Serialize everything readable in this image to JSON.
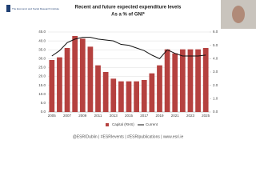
{
  "logo": "The Economic and Social Research Institute",
  "footer": "@ESRIDublin | #ESRIevents | #ESRIpublications | www.esri.ie",
  "chart_data": {
    "type": "bar",
    "title": "Recent and future expected expenditure levels",
    "subtitle": "As a % of GNI*",
    "categories": [
      "2005",
      null,
      "2007",
      null,
      "2009",
      null,
      "2011",
      null,
      "2013",
      null,
      "2015",
      null,
      "2017",
      null,
      "2019",
      null,
      "2021",
      null,
      "2023",
      null,
      "2025"
    ],
    "series": [
      {
        "name": "Capital (RHS)",
        "color": "#b5413f",
        "axis": "y2",
        "values": [
          3.9,
          4.1,
          4.8,
          5.7,
          5.5,
          4.9,
          3.5,
          3.0,
          2.5,
          2.3,
          2.3,
          2.3,
          2.4,
          2.9,
          3.5,
          4.7,
          4.4,
          4.7,
          4.7,
          4.7,
          4.8
        ]
      },
      {
        "name": "Current",
        "color": "#111111",
        "type": "line",
        "values": [
          31.5,
          34.5,
          39,
          41,
          42,
          42,
          41,
          40.5,
          40,
          38,
          37.5,
          36,
          34.5,
          32,
          30,
          35,
          33,
          31.5,
          31.5,
          31.5,
          32
        ]
      }
    ],
    "ylim": [
      0,
      45
    ],
    "yticks": [
      {
        "value": 0,
        "label": "0.0"
      },
      {
        "value": 5,
        "label": "5.0"
      },
      {
        "value": 10,
        "label": "10.0"
      },
      {
        "value": 15,
        "label": "15.0"
      },
      {
        "value": 20,
        "label": "20.0"
      },
      {
        "value": 25,
        "label": "25.0"
      },
      {
        "value": 30,
        "label": "30.0"
      },
      {
        "value": 35,
        "label": "35.0"
      },
      {
        "value": 40,
        "label": "40.0"
      },
      {
        "value": 45,
        "label": "45.0"
      }
    ],
    "y2lim": [
      0,
      6
    ],
    "y2ticks": [
      {
        "value": 0,
        "label": "0.0"
      },
      {
        "value": 1,
        "label": "1.0"
      },
      {
        "value": 2,
        "label": "2.0"
      },
      {
        "value": 3,
        "label": "3.0"
      },
      {
        "value": 4,
        "label": "4.0"
      },
      {
        "value": 5,
        "label": "5.0"
      },
      {
        "value": 6,
        "label": "6.0"
      }
    ],
    "grid": true
  }
}
